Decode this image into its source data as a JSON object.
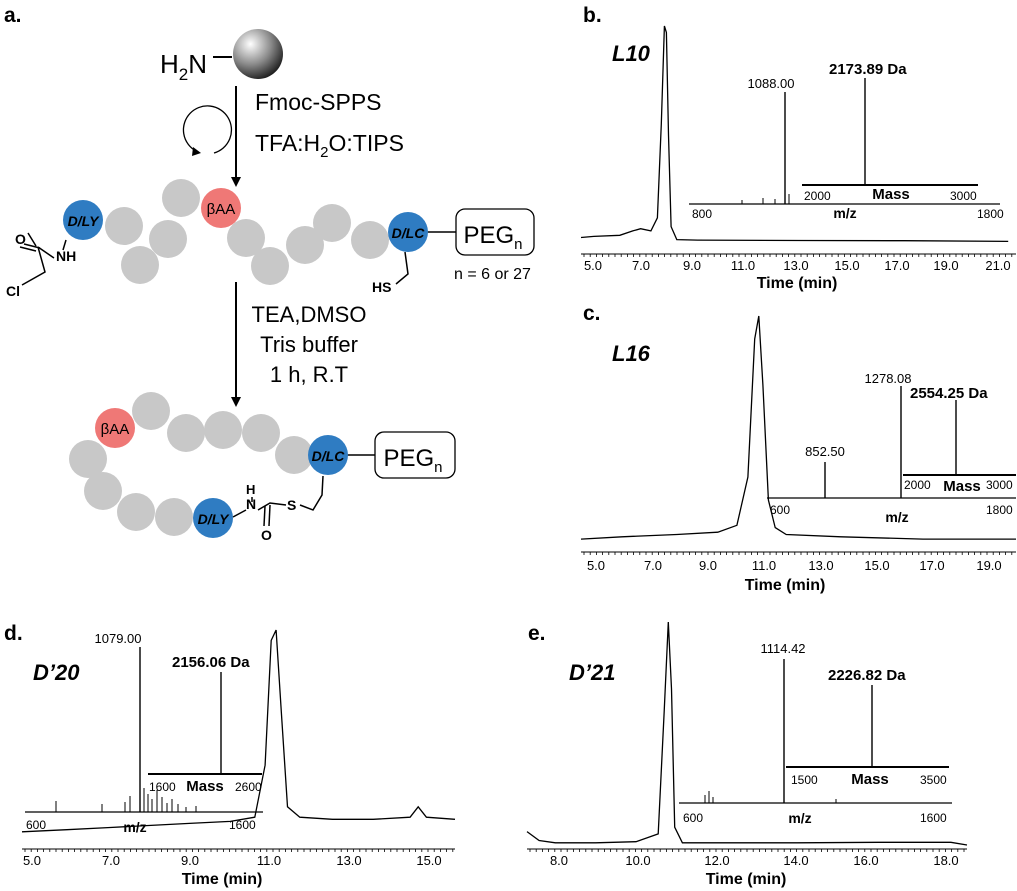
{
  "panels": {
    "a": {
      "label": "a.",
      "resin_prefix": "H",
      "resin_sub": "2",
      "resin_suffix": "N",
      "step1_line1": "Fmoc-SPPS",
      "step1_line2_a": "TFA:H",
      "step1_line2_sub": "2",
      "step1_line2_b": "O:TIPS",
      "dl_y": "D/LY",
      "beta_aa": "βAA",
      "dl_c": "D/LC",
      "peg": "PEG",
      "peg_sub": "n",
      "n_note": "n = 6 or 27",
      "nh": "NH",
      "o": "O",
      "cl": "Cl",
      "hs": "HS",
      "step2_line1": "TEA,DMSO",
      "step2_line2": "Tris buffer",
      "step2_line3": "1 h, R.T",
      "h": "H",
      "n": "N",
      "s": "S",
      "colors": {
        "bead": "#c8c8c8",
        "dl_residue": "#2f7cc2",
        "beta_aa": "#ef7876"
      }
    },
    "b": {
      "label": "b.",
      "name": "L10",
      "peak_label": "1088.00",
      "mass_label": "2173.89 Da",
      "inset_axis_label": "m/z",
      "inset_ticks": [
        "800",
        "1800"
      ],
      "mass_axis_label": "Mass",
      "mass_ticks": [
        "2000",
        "3000"
      ],
      "x_label": "Time (min)",
      "x_ticks": [
        "5.0",
        "7.0",
        "9.0",
        "11.0",
        "13.0",
        "15.0",
        "17.0",
        "19.0",
        "21.0"
      ]
    },
    "c": {
      "label": "c.",
      "name": "L16",
      "peak1_label": "852.50",
      "peak2_label": "1278.08",
      "mass_label": "2554.25 Da",
      "inset_axis_label": "m/z",
      "inset_ticks": [
        "600",
        "1800"
      ],
      "mass_axis_label": "Mass",
      "mass_ticks": [
        "2000",
        "3000"
      ],
      "x_label": "Time (min)",
      "x_ticks": [
        "5.0",
        "7.0",
        "9.0",
        "11.0",
        "13.0",
        "15.0",
        "17.0",
        "19.0"
      ]
    },
    "d": {
      "label": "d.",
      "name": "D’20",
      "peak_label": "1079.00",
      "mass_label": "2156.06 Da",
      "inset_axis_label": "m/z",
      "inset_ticks": [
        "600",
        "1600"
      ],
      "mass_axis_label": "Mass",
      "mass_ticks": [
        "1600",
        "2600"
      ],
      "x_label": "Time (min)",
      "x_ticks": [
        "5.0",
        "7.0",
        "9.0",
        "11.0",
        "13.0",
        "15.0"
      ]
    },
    "e": {
      "label": "e.",
      "name": "D’21",
      "peak_label": "1114.42",
      "mass_label": "2226.82 Da",
      "inset_axis_label": "m/z",
      "inset_ticks": [
        "600",
        "1600"
      ],
      "mass_axis_label": "Mass",
      "mass_ticks": [
        "1500",
        "3500"
      ],
      "x_label": "Time (min)",
      "x_ticks": [
        "8.0",
        "10.0",
        "12.0",
        "14.0",
        "16.0",
        "18.0"
      ]
    }
  },
  "chart_data": [
    {
      "type": "line",
      "panel": "b",
      "xlabel": "Time (min)",
      "xlim": [
        4.5,
        21.3
      ],
      "x": [
        4.5,
        5.0,
        6.0,
        6.5,
        6.8,
        7.2,
        7.45,
        7.6,
        7.72,
        7.8,
        7.88,
        7.98,
        8.2,
        9.0,
        13.0,
        17.0,
        21.0
      ],
      "y": [
        0.03,
        0.035,
        0.04,
        0.06,
        0.07,
        0.06,
        0.12,
        0.55,
        1.0,
        0.97,
        0.5,
        0.08,
        0.02,
        0.018,
        0.016,
        0.015,
        0.012
      ],
      "inset_ms": {
        "xlim": [
          800,
          1800
        ],
        "peaks": [
          {
            "x": 1088.0,
            "y": 1.0
          }
        ]
      },
      "inset_deconvoluted": {
        "xlim": [
          2000,
          3000
        ],
        "peaks": [
          {
            "x": 2173.89,
            "y": 1.0
          }
        ]
      }
    },
    {
      "type": "line",
      "panel": "c",
      "xlabel": "Time (min)",
      "xlim": [
        4.5,
        20.4
      ],
      "x": [
        4.5,
        6.0,
        8.0,
        9.5,
        10.2,
        10.6,
        10.85,
        11.0,
        11.15,
        11.35,
        11.6,
        12.0,
        14.0,
        17.0,
        20.4
      ],
      "y": [
        0.03,
        0.04,
        0.05,
        0.06,
        0.09,
        0.3,
        0.9,
        1.0,
        0.7,
        0.2,
        0.08,
        0.05,
        0.04,
        0.03,
        0.03
      ],
      "inset_ms": {
        "xlim": [
          600,
          1800
        ],
        "peaks": [
          {
            "x": 852.5,
            "y": 0.45
          },
          {
            "x": 1278.08,
            "y": 1.0
          }
        ]
      },
      "inset_deconvoluted": {
        "xlim": [
          2000,
          3000
        ],
        "peaks": [
          {
            "x": 2554.25,
            "y": 1.0
          }
        ]
      }
    },
    {
      "type": "line",
      "panel": "d",
      "xlabel": "Time (min)",
      "xlim": [
        4.9,
        15.5
      ],
      "x": [
        4.9,
        6.0,
        7.0,
        8.0,
        9.0,
        10.0,
        10.6,
        10.85,
        11.0,
        11.12,
        11.25,
        11.4,
        11.7,
        12.5,
        13.5,
        14.4,
        14.6,
        14.8,
        15.5
      ],
      "y": [
        0.03,
        0.04,
        0.05,
        0.06,
        0.07,
        0.08,
        0.1,
        0.35,
        0.95,
        1.0,
        0.6,
        0.15,
        0.1,
        0.09,
        0.09,
        0.1,
        0.15,
        0.1,
        0.09
      ],
      "inset_ms": {
        "xlim": [
          600,
          1600
        ],
        "peaks": [
          {
            "x": 1079.0,
            "y": 1.0
          }
        ]
      },
      "inset_deconvoluted": {
        "xlim": [
          1600,
          2600
        ],
        "peaks": [
          {
            "x": 2156.06,
            "y": 1.0
          }
        ]
      }
    },
    {
      "type": "line",
      "panel": "e",
      "xlabel": "Time (min)",
      "xlim": [
        7.3,
        18.2
      ],
      "x": [
        7.3,
        7.6,
        8.0,
        9.0,
        10.0,
        10.55,
        10.7,
        10.8,
        10.88,
        10.96,
        11.15,
        12.0,
        14.0,
        16.0,
        17.8,
        18.2
      ],
      "y": [
        0.06,
        0.02,
        0.01,
        0.01,
        0.015,
        0.05,
        0.6,
        1.0,
        0.7,
        0.08,
        0.01,
        0.01,
        0.01,
        0.012,
        0.012,
        0.0
      ],
      "inset_ms": {
        "xlim": [
          600,
          1600
        ],
        "peaks": [
          {
            "x": 1114.42,
            "y": 1.0
          }
        ]
      },
      "inset_deconvoluted": {
        "xlim": [
          1500,
          3500
        ],
        "peaks": [
          {
            "x": 2226.82,
            "y": 1.0
          }
        ]
      }
    }
  ]
}
